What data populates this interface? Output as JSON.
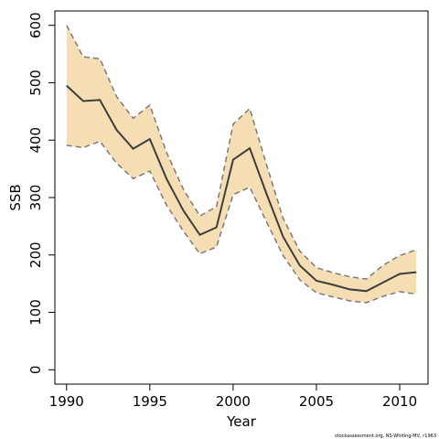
{
  "chart_data": {
    "type": "line",
    "xlabel": "Year",
    "ylabel": "SSB",
    "xlim": [
      1989.3,
      2011.7
    ],
    "ylim": [
      -25,
      625
    ],
    "x_ticks": [
      1990,
      1995,
      2000,
      2005,
      2010
    ],
    "y_ticks": [
      0,
      100,
      200,
      300,
      400,
      500,
      600
    ],
    "grid": false,
    "legend": "none",
    "colors": {
      "band": "#f5deb3",
      "line": "#3d3d3d",
      "bound": "#7a7a7a",
      "axis": "#000000"
    },
    "x": [
      1990,
      1991,
      1992,
      1993,
      1994,
      1995,
      1996,
      1997,
      1998,
      1999,
      2000,
      2001,
      2002,
      2003,
      2004,
      2005,
      2006,
      2007,
      2008,
      2009,
      2010,
      2011
    ],
    "series": [
      {
        "role": "estimate",
        "style": "solid",
        "values": [
          495,
          468,
          470,
          418,
          385,
          402,
          333,
          278,
          235,
          248,
          366,
          386,
          307,
          232,
          182,
          155,
          148,
          140,
          137,
          152,
          167,
          170
        ]
      },
      {
        "role": "upper",
        "style": "dashed",
        "values": [
          600,
          545,
          542,
          476,
          438,
          461,
          379,
          315,
          268,
          284,
          428,
          455,
          358,
          264,
          207,
          178,
          169,
          162,
          158,
          182,
          199,
          209
        ]
      },
      {
        "role": "lower",
        "style": "dashed",
        "values": [
          391,
          387,
          398,
          360,
          333,
          346,
          287,
          242,
          202,
          214,
          305,
          318,
          258,
          199,
          157,
          134,
          127,
          120,
          117,
          128,
          136,
          132
        ]
      }
    ]
  },
  "footer": {
    "credit": "stockassessment.org, NS-Whiting-MV, r1963"
  }
}
